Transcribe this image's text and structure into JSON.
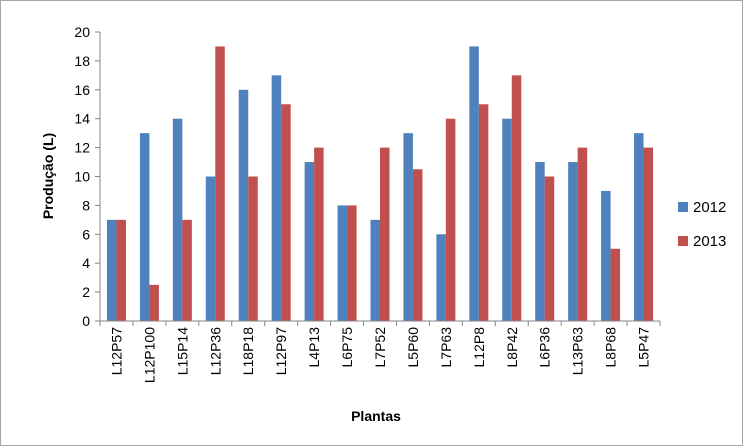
{
  "chart_data": {
    "type": "bar",
    "title": "",
    "xlabel": "Plantas",
    "ylabel": "Produção (L)",
    "ylim": [
      0,
      20
    ],
    "yticks": [
      0,
      2,
      4,
      6,
      8,
      10,
      12,
      14,
      16,
      18,
      20
    ],
    "grid": false,
    "legend_position": "right",
    "categories": [
      "L12P57",
      "L12P100",
      "L15P14",
      "L12P36",
      "L18P18",
      "L12P97",
      "L4P13",
      "L6P75",
      "L7P52",
      "L5P60",
      "L7P63",
      "L12P8",
      "L8P42",
      "L6P36",
      "L13P63",
      "L8P68",
      "L5P47"
    ],
    "series": [
      {
        "name": "2012",
        "color": "#4f81bd",
        "values": [
          7,
          13,
          14,
          10,
          16,
          17,
          11,
          8,
          7,
          13,
          6,
          19,
          14,
          11,
          11,
          9,
          13
        ]
      },
      {
        "name": "2013",
        "color": "#c0504d",
        "values": [
          7,
          2.5,
          7,
          19,
          10,
          15,
          12,
          8,
          12,
          10.5,
          14,
          15,
          17,
          10,
          12,
          5,
          12
        ]
      }
    ]
  }
}
